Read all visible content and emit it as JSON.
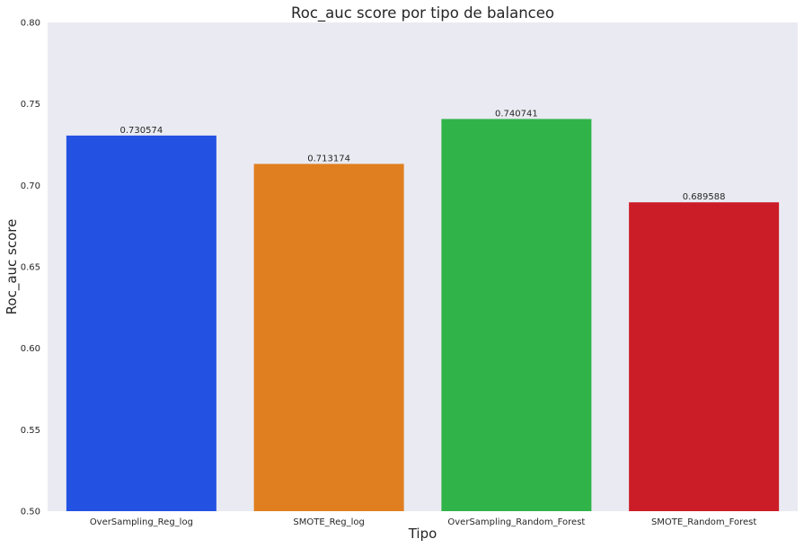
{
  "chart_data": {
    "type": "bar",
    "title": "Roc_auc score por tipo de balanceo",
    "xlabel": "Tipo",
    "ylabel": "Roc_auc score",
    "categories": [
      "OverSampling_Reg_log",
      "SMOTE_Reg_log",
      "OverSampling_Random_Forest",
      "SMOTE_Random_Forest"
    ],
    "values": [
      0.730574,
      0.713174,
      0.740741,
      0.689588
    ],
    "data_labels": [
      "0.730574",
      "0.713174",
      "0.740741",
      "0.689588"
    ],
    "colors": [
      "#2352e3",
      "#e07f20",
      "#30b44a",
      "#cb1d27"
    ],
    "ylim": [
      0.5,
      0.8
    ],
    "yticks": [
      0.5,
      0.55,
      0.6,
      0.65,
      0.7,
      0.75,
      0.8
    ],
    "ytick_labels": [
      "0.50",
      "0.55",
      "0.60",
      "0.65",
      "0.70",
      "0.75",
      "0.80"
    ],
    "grid": false,
    "legend": "none",
    "background": "#eaeaf2"
  }
}
